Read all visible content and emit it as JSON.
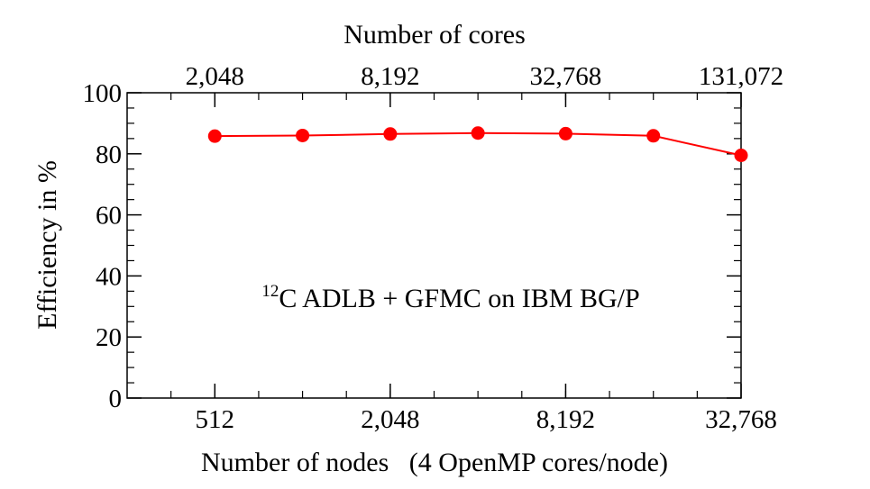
{
  "chart_data": {
    "type": "line",
    "title": "Number of cores",
    "xlabel": "Number of nodes   (4 OpenMP cores/node)",
    "ylabel": "Efficiency in %",
    "x": [
      512,
      1024,
      2048,
      4096,
      8192,
      16384,
      32768
    ],
    "xscale": "log2",
    "xlim": [
      256,
      32768
    ],
    "ylim": [
      0,
      100
    ],
    "x_ticks": [
      512,
      2048,
      8192,
      32768
    ],
    "x_tick_labels": [
      "512",
      "2,048",
      "8,192",
      "32,768"
    ],
    "top_ticks": [
      512,
      2048,
      8192,
      32768
    ],
    "top_tick_labels": [
      "2,048",
      "8,192",
      "32,768",
      "131,072"
    ],
    "y_ticks": [
      0,
      20,
      40,
      60,
      80,
      100
    ],
    "y_tick_labels": [
      "0",
      "20",
      "40",
      "60",
      "80",
      "100"
    ],
    "series": [
      {
        "values": [
          85.8,
          86.0,
          86.5,
          86.8,
          86.6,
          85.9,
          79.5
        ],
        "color": "#ff0000"
      }
    ],
    "annotation": {
      "superscript": "12",
      "text": "C ADLB + GFMC on IBM BG/P"
    },
    "grid": false,
    "legend": "none"
  }
}
